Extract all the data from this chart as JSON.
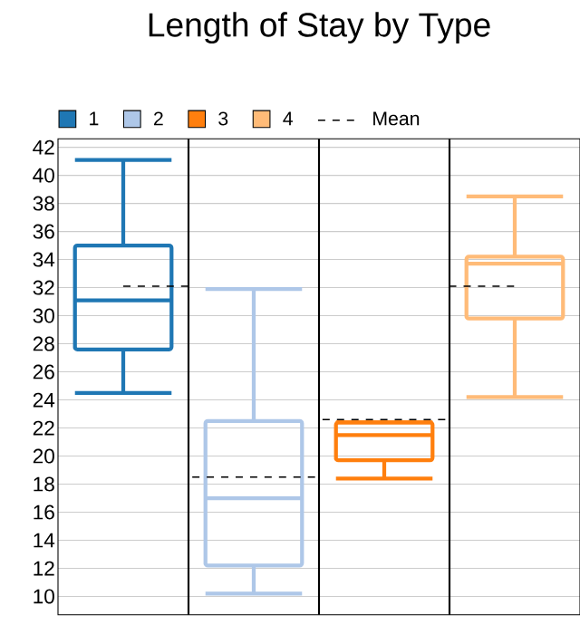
{
  "chart_data": {
    "type": "box",
    "title": "Length of Stay by Type",
    "categories": [
      null,
      null,
      null,
      null
    ],
    "ylim": [
      8.7,
      42.6
    ],
    "yticks": [
      10,
      12,
      14,
      16,
      18,
      20,
      22,
      24,
      26,
      28,
      30,
      32,
      34,
      36,
      38,
      40,
      42
    ],
    "grid": "y",
    "legend": "top left",
    "series": [
      {
        "name": "1",
        "color": "#1f77b4",
        "boxes": [
          {
            "low": 24.5,
            "q1": 27.6,
            "median": 31.1,
            "q3": 35.0,
            "high": 41.1
          },
          null,
          null,
          null
        ]
      },
      {
        "name": "2",
        "color": "#aec7e8",
        "boxes": [
          null,
          {
            "low": 10.2,
            "q1": 12.2,
            "median": 17.0,
            "q3": 22.5,
            "high": 31.9
          },
          null,
          null
        ]
      },
      {
        "name": "3",
        "color": "#ff7f0e",
        "boxes": [
          null,
          null,
          {
            "low": 18.4,
            "q1": 19.7,
            "median": 21.5,
            "q3": 22.4,
            "high": 22.4
          },
          null
        ]
      },
      {
        "name": "4",
        "color": "#ffbb78",
        "boxes": [
          null,
          null,
          null,
          {
            "low": 24.2,
            "q1": 29.8,
            "median": 33.7,
            "q3": 34.2,
            "high": 38.5
          }
        ]
      },
      {
        "name": "Mean",
        "type": "step",
        "line_style": "dashed",
        "color": "#000000",
        "values": [
          32.1,
          18.5,
          22.6,
          32.1
        ]
      }
    ]
  }
}
